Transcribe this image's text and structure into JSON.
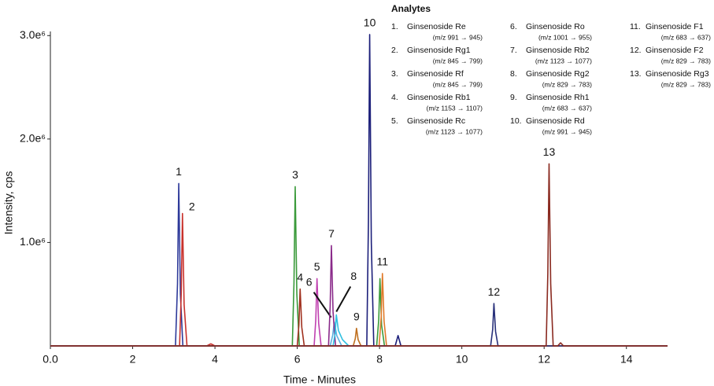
{
  "chart_data": {
    "type": "line",
    "xlabel": "Time - Minutes",
    "ylabel": "Intensity, cps",
    "xlim": [
      0,
      15
    ],
    "ylim": [
      0,
      3040000
    ],
    "xticks": [
      {
        "value": 0,
        "label": "0.0"
      },
      2,
      4,
      6,
      8,
      10,
      12,
      14
    ],
    "yticks": [
      {
        "value": 1000000,
        "label": "1.0e⁶"
      },
      {
        "value": 2000000,
        "label": "2.0e⁶"
      },
      {
        "value": 3000000,
        "label": "3.0e⁶"
      }
    ],
    "legend_title": "Analytes",
    "series": [
      {
        "number": "1.",
        "name": "Ginsenoside Re",
        "transition": "(m/z 991 → 945)",
        "peak_label": "1",
        "color": "#2e3a9a",
        "x": [
          0,
          3.04,
          3.09,
          3.12,
          3.16,
          3.22,
          15
        ],
        "values": [
          0,
          0,
          600000,
          1570000,
          500000,
          0,
          0
        ]
      },
      {
        "number": "2.",
        "name": "Ginsenoside Rg1",
        "transition": "(m/z 845 → 799)",
        "peak_label": "2",
        "color": "#c8322d",
        "x": [
          0,
          3.14,
          3.18,
          3.21,
          3.25,
          3.32,
          3.8,
          3.9,
          4.0,
          15
        ],
        "values": [
          0,
          0,
          500000,
          1280000,
          400000,
          0,
          0,
          20000,
          0,
          0
        ]
      },
      {
        "number": "3.",
        "name": "Ginsenoside Rf",
        "transition": "(m/z 845 → 799)",
        "peak_label": "3",
        "color": "#3a9a3a",
        "x": [
          0,
          5.88,
          5.92,
          5.95,
          5.99,
          6.05,
          7.93,
          7.98,
          8.01,
          8.05,
          8.12,
          15
        ],
        "values": [
          0,
          0,
          600000,
          1540000,
          500000,
          0,
          0,
          250000,
          650000,
          200000,
          0,
          0
        ]
      },
      {
        "number": "4.",
        "name": "Ginsenoside Rb1",
        "transition": "(m/z 1153 → 1107)",
        "peak_label": "4",
        "color": "#a0301e",
        "x": [
          0,
          6.0,
          6.04,
          6.07,
          6.11,
          6.17,
          15
        ],
        "values": [
          0,
          0,
          200000,
          550000,
          180000,
          0,
          0
        ]
      },
      {
        "number": "5.",
        "name": "Ginsenoside Rc",
        "transition": "(m/z 1123 → 1077)",
        "peak_label": "5",
        "color": "#c040b0",
        "x": [
          0,
          6.41,
          6.45,
          6.48,
          6.52,
          6.58,
          15
        ],
        "values": [
          0,
          0,
          250000,
          650000,
          220000,
          0,
          0
        ]
      },
      {
        "number": "6.",
        "name": "Ginsenoside Ro",
        "transition": "(m/z 1001 → 955)",
        "peak_label": "6",
        "color": "#5ab0e0",
        "x": [
          0,
          6.8,
          6.86,
          6.9,
          6.96,
          7.08,
          15
        ],
        "values": [
          0,
          0,
          100000,
          230000,
          100000,
          0,
          0
        ]
      },
      {
        "number": "7.",
        "name": "Ginsenoside Rb2",
        "transition": "(m/z 1123 → 1077)",
        "peak_label": "7",
        "color": "#8a2a8a",
        "x": [
          0,
          6.76,
          6.8,
          6.83,
          6.87,
          6.93,
          15
        ],
        "values": [
          0,
          0,
          380000,
          970000,
          330000,
          0,
          0
        ]
      },
      {
        "number": "8.",
        "name": "Ginsenoside Rg2",
        "transition": "(m/z 829 → 783)",
        "peak_label": "8",
        "color": "#30c0e0",
        "x": [
          0,
          6.87,
          6.92,
          6.95,
          7.0,
          7.1,
          7.25,
          15
        ],
        "values": [
          0,
          0,
          120000,
          300000,
          150000,
          60000,
          0,
          0
        ]
      },
      {
        "number": "9.",
        "name": "Ginsenoside Rh1",
        "transition": "(m/z 683 → 637)",
        "peak_label": "9",
        "color": "#c07020",
        "x": [
          0,
          7.36,
          7.41,
          7.44,
          7.48,
          7.55,
          15
        ],
        "values": [
          0,
          0,
          70000,
          170000,
          60000,
          0,
          0
        ]
      },
      {
        "number": "10.",
        "name": "Ginsenoside Rd",
        "transition": "(m/z 991 → 945)",
        "peak_label": "10",
        "color": "#1c1f7a",
        "x": [
          0,
          7.69,
          7.73,
          7.76,
          7.8,
          7.86,
          8.38,
          8.45,
          8.52,
          15
        ],
        "values": [
          0,
          0,
          1200000,
          3010000,
          1000000,
          0,
          0,
          100000,
          0,
          0
        ]
      },
      {
        "number": "11.",
        "name": "Ginsenoside F1",
        "transition": "(m/z 683 → 637)",
        "peak_label": "11",
        "color": "#e07a2a",
        "x": [
          0,
          7.99,
          8.04,
          8.07,
          8.11,
          8.17,
          15
        ],
        "values": [
          0,
          0,
          280000,
          700000,
          240000,
          0,
          0
        ]
      },
      {
        "number": "12.",
        "name": "Ginsenoside F2",
        "transition": "(m/z 829 → 783)",
        "peak_label": "12",
        "color": "#28307a",
        "x": [
          0,
          10.7,
          10.75,
          10.78,
          10.82,
          10.88,
          15
        ],
        "values": [
          0,
          0,
          160000,
          410000,
          140000,
          0,
          0
        ]
      },
      {
        "number": "13.",
        "name": "Ginsenoside Rg3",
        "transition": "(m/z 829 → 783)",
        "peak_label": "13",
        "color": "#8a2a20",
        "x": [
          0,
          12.05,
          12.09,
          12.12,
          12.16,
          12.22,
          12.33,
          12.4,
          12.47,
          15
        ],
        "values": [
          0,
          0,
          700000,
          1760000,
          600000,
          0,
          0,
          30000,
          0,
          0
        ]
      }
    ]
  }
}
